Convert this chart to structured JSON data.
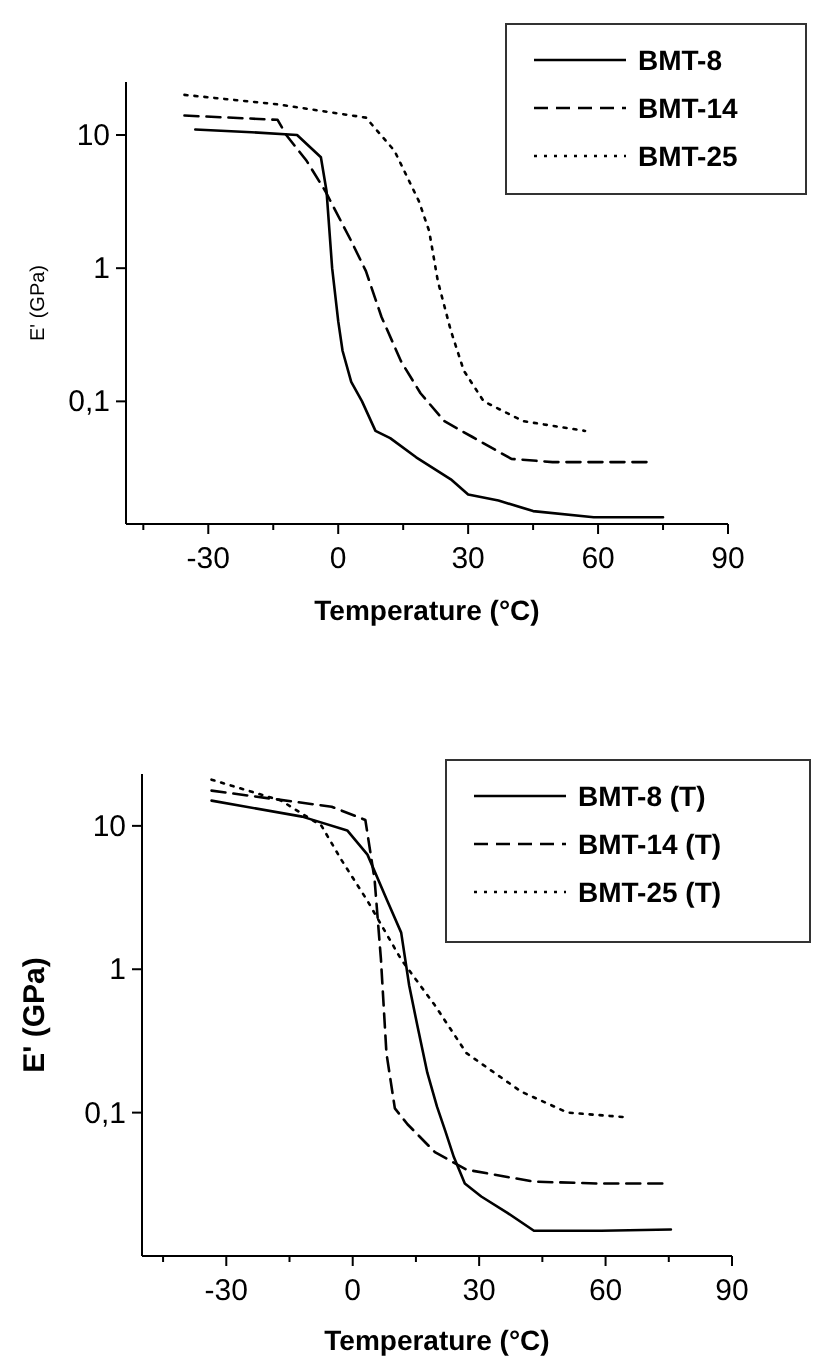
{
  "chart_data": [
    {
      "type": "line",
      "xlabel": "Temperature (°C)",
      "ylabel": "E' (GPa)",
      "log": "y",
      "legend": "top right",
      "grid": false,
      "xlim": [
        -49,
        90
      ],
      "ylim": [
        0.012,
        25
      ],
      "xticks": [
        {
          "value": -45,
          "label": null
        },
        -30,
        {
          "value": -15,
          "label": null
        },
        0,
        {
          "value": 15,
          "label": null
        },
        30,
        {
          "value": 45,
          "label": null
        },
        60,
        {
          "value": 75,
          "label": null
        },
        90
      ],
      "yticks": [
        {
          "value": 0.1,
          "label": "0,1"
        },
        {
          "value": 1,
          "label": "1"
        },
        {
          "value": 10,
          "label": "10"
        }
      ],
      "series": [
        {
          "name": "BMT-8",
          "color": "#000000",
          "line_style": "solid",
          "x": [
            -33,
            -20,
            -9.5,
            -4,
            -2.7,
            -1.4,
            0,
            1,
            3,
            5.5,
            8.6,
            12,
            18,
            26,
            30,
            37,
            45,
            59,
            75
          ],
          "values": [
            11,
            10.5,
            10,
            6.8,
            3.8,
            1,
            0.4,
            0.24,
            0.14,
            0.1,
            0.06,
            0.053,
            0.038,
            0.026,
            0.02,
            0.018,
            0.015,
            0.0135,
            0.0135
          ]
        },
        {
          "name": "BMT-14",
          "color": "#000000",
          "line_style": "dashed",
          "x": [
            -35.5,
            -14,
            -12,
            -7.3,
            -3,
            3,
            6.4,
            10,
            14.5,
            19,
            24.5,
            31,
            40,
            49.5,
            72
          ],
          "values": [
            14,
            13,
            10,
            6.4,
            3.8,
            1.6,
            0.95,
            0.43,
            0.2,
            0.115,
            0.071,
            0.054,
            0.037,
            0.035,
            0.035
          ]
        },
        {
          "name": "BMT-25",
          "color": "#000000",
          "line_style": "dotted",
          "x": [
            -35.5,
            -14,
            6.4,
            13,
            18.6,
            21,
            23,
            26,
            29,
            33.6,
            42.7,
            57
          ],
          "values": [
            20,
            17,
            13.5,
            7.6,
            3.2,
            1.9,
            0.8,
            0.34,
            0.17,
            0.1,
            0.071,
            0.06
          ]
        }
      ]
    },
    {
      "type": "line",
      "xlabel": "Temperature (°C)",
      "ylabel": "E' (GPa)",
      "log": "y",
      "legend": "top right",
      "grid": false,
      "xlim": [
        -50,
        90
      ],
      "ylim": [
        0.01,
        23
      ],
      "xticks": [
        {
          "value": -45,
          "label": null
        },
        -30,
        {
          "value": -15,
          "label": null
        },
        0,
        {
          "value": 15,
          "label": null
        },
        30,
        {
          "value": 45,
          "label": null
        },
        60,
        {
          "value": 75,
          "label": null
        },
        90
      ],
      "yticks": [
        {
          "value": 0.1,
          "label": "0,1"
        },
        {
          "value": 1,
          "label": "1"
        },
        {
          "value": 10,
          "label": "10"
        }
      ],
      "series": [
        {
          "name": "BMT-8 (T)",
          "color": "#000000",
          "line_style": "solid",
          "x": [
            -33.5,
            -12,
            -1.3,
            3.5,
            8.2,
            11.5,
            13.4,
            15.3,
            17.7,
            20,
            22,
            24,
            26.6,
            30.5,
            36.7,
            43,
            59,
            75.5
          ],
          "values": [
            15,
            11.6,
            9.3,
            6.3,
            3,
            1.8,
            0.77,
            0.41,
            0.19,
            0.11,
            0.074,
            0.049,
            0.032,
            0.026,
            0.02,
            0.015,
            0.015,
            0.0153
          ]
        },
        {
          "name": "BMT-14 (T)",
          "color": "#000000",
          "line_style": "dashed",
          "x": [
            -33.5,
            -5,
            3,
            5.2,
            6.7,
            8,
            10,
            13,
            19.5,
            27,
            43,
            59,
            74.6
          ],
          "values": [
            17.6,
            13.6,
            11,
            4.2,
            1.17,
            0.26,
            0.107,
            0.083,
            0.053,
            0.04,
            0.033,
            0.032,
            0.032
          ]
        },
        {
          "name": "BMT-25 (T)",
          "color": "#000000",
          "line_style": "dotted",
          "x": [
            -33.5,
            -17,
            -7.4,
            -2.7,
            3.5,
            11.5,
            19.5,
            27,
            40,
            51,
            64.6
          ],
          "values": [
            21,
            15,
            10,
            5.8,
            3,
            1.17,
            0.56,
            0.26,
            0.14,
            0.1,
            0.093
          ]
        }
      ]
    }
  ]
}
